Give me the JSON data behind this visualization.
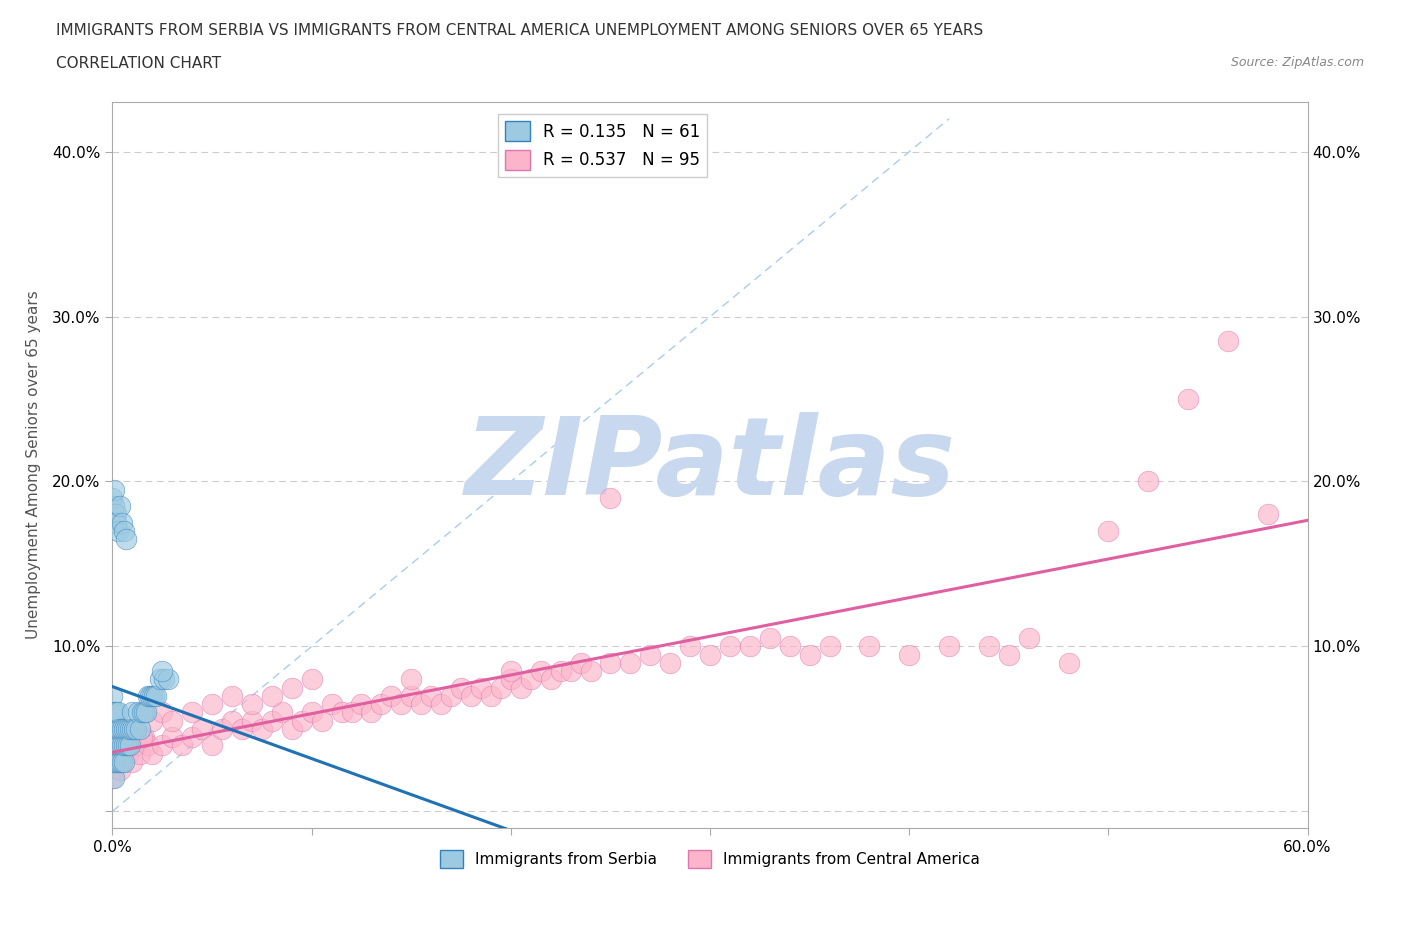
{
  "title_line1": "IMMIGRANTS FROM SERBIA VS IMMIGRANTS FROM CENTRAL AMERICA UNEMPLOYMENT AMONG SENIORS OVER 65 YEARS",
  "title_line2": "CORRELATION CHART",
  "source_text": "Source: ZipAtlas.com",
  "ylabel": "Unemployment Among Seniors over 65 years",
  "xlim": [
    0,
    0.6
  ],
  "ylim": [
    -0.01,
    0.43
  ],
  "xticks": [
    0.0,
    0.1,
    0.2,
    0.3,
    0.4,
    0.5,
    0.6
  ],
  "yticks": [
    0.0,
    0.1,
    0.2,
    0.3,
    0.4
  ],
  "serbia": {
    "name": "Immigrants from Serbia",
    "R": 0.135,
    "N": 61,
    "color": "#9ecae1",
    "edge_color": "#3182bd",
    "trend_color": "#2171b5",
    "x": [
      0.0,
      0.0,
      0.0,
      0.0,
      0.0,
      0.001,
      0.001,
      0.001,
      0.001,
      0.001,
      0.002,
      0.002,
      0.002,
      0.002,
      0.003,
      0.003,
      0.003,
      0.003,
      0.004,
      0.004,
      0.004,
      0.005,
      0.005,
      0.005,
      0.006,
      0.006,
      0.006,
      0.007,
      0.007,
      0.008,
      0.008,
      0.009,
      0.009,
      0.01,
      0.01,
      0.011,
      0.012,
      0.013,
      0.014,
      0.015,
      0.016,
      0.017,
      0.018,
      0.019,
      0.02,
      0.021,
      0.022,
      0.024,
      0.026,
      0.028,
      0.0,
      0.001,
      0.001,
      0.002,
      0.002,
      0.003,
      0.004,
      0.005,
      0.006,
      0.007,
      0.025
    ],
    "y": [
      0.03,
      0.04,
      0.05,
      0.06,
      0.07,
      0.02,
      0.03,
      0.04,
      0.05,
      0.06,
      0.03,
      0.04,
      0.05,
      0.06,
      0.03,
      0.04,
      0.05,
      0.06,
      0.03,
      0.04,
      0.05,
      0.03,
      0.04,
      0.05,
      0.03,
      0.04,
      0.05,
      0.04,
      0.05,
      0.04,
      0.05,
      0.04,
      0.05,
      0.05,
      0.06,
      0.05,
      0.05,
      0.06,
      0.05,
      0.06,
      0.06,
      0.06,
      0.07,
      0.07,
      0.07,
      0.07,
      0.07,
      0.08,
      0.08,
      0.08,
      0.19,
      0.185,
      0.195,
      0.18,
      0.175,
      0.17,
      0.185,
      0.175,
      0.17,
      0.165,
      0.085
    ]
  },
  "central": {
    "name": "Immigrants from Central America",
    "R": 0.537,
    "N": 95,
    "color": "#fbb4c9",
    "edge_color": "#de77ae",
    "trend_color": "#e05fa0",
    "x": [
      0.0,
      0.002,
      0.004,
      0.006,
      0.008,
      0.01,
      0.012,
      0.014,
      0.016,
      0.018,
      0.02,
      0.025,
      0.03,
      0.035,
      0.04,
      0.045,
      0.05,
      0.055,
      0.06,
      0.065,
      0.07,
      0.075,
      0.08,
      0.085,
      0.09,
      0.095,
      0.1,
      0.105,
      0.11,
      0.115,
      0.12,
      0.125,
      0.13,
      0.135,
      0.14,
      0.145,
      0.15,
      0.155,
      0.16,
      0.165,
      0.17,
      0.175,
      0.18,
      0.185,
      0.19,
      0.195,
      0.2,
      0.205,
      0.21,
      0.215,
      0.22,
      0.225,
      0.23,
      0.235,
      0.24,
      0.25,
      0.26,
      0.27,
      0.28,
      0.29,
      0.3,
      0.31,
      0.32,
      0.33,
      0.34,
      0.35,
      0.36,
      0.38,
      0.4,
      0.42,
      0.44,
      0.45,
      0.46,
      0.48,
      0.5,
      0.52,
      0.54,
      0.56,
      0.58,
      0.005,
      0.01,
      0.015,
      0.02,
      0.025,
      0.03,
      0.04,
      0.05,
      0.06,
      0.07,
      0.08,
      0.09,
      0.1,
      0.15,
      0.2,
      0.25
    ],
    "y": [
      0.02,
      0.03,
      0.025,
      0.04,
      0.035,
      0.03,
      0.04,
      0.035,
      0.045,
      0.04,
      0.035,
      0.04,
      0.045,
      0.04,
      0.045,
      0.05,
      0.04,
      0.05,
      0.055,
      0.05,
      0.055,
      0.05,
      0.055,
      0.06,
      0.05,
      0.055,
      0.06,
      0.055,
      0.065,
      0.06,
      0.06,
      0.065,
      0.06,
      0.065,
      0.07,
      0.065,
      0.07,
      0.065,
      0.07,
      0.065,
      0.07,
      0.075,
      0.07,
      0.075,
      0.07,
      0.075,
      0.08,
      0.075,
      0.08,
      0.085,
      0.08,
      0.085,
      0.085,
      0.09,
      0.085,
      0.09,
      0.09,
      0.095,
      0.09,
      0.1,
      0.095,
      0.1,
      0.1,
      0.105,
      0.1,
      0.095,
      0.1,
      0.1,
      0.095,
      0.1,
      0.1,
      0.095,
      0.105,
      0.09,
      0.17,
      0.2,
      0.25,
      0.285,
      0.18,
      0.045,
      0.05,
      0.045,
      0.055,
      0.06,
      0.055,
      0.06,
      0.065,
      0.07,
      0.065,
      0.07,
      0.075,
      0.08,
      0.08,
      0.085,
      0.19
    ]
  },
  "watermark": "ZIPatlas",
  "watermark_color": "#c8d8ee",
  "bg_color": "#ffffff",
  "grid_color": "#cccccc",
  "ref_line_color": "#aaccee"
}
